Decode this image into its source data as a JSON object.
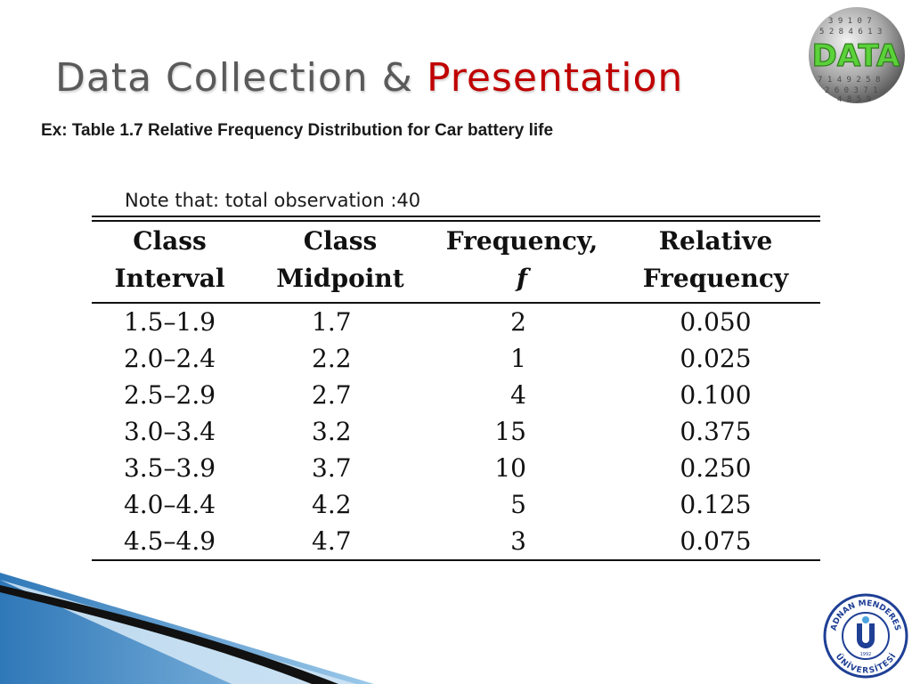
{
  "slide": {
    "title_main": "Data Collection & ",
    "title_accent": "Presentation",
    "subtitle": "Ex: Table 1.7 Relative Frequency Distribution for Car battery life",
    "note": "Note that: total observation :40"
  },
  "table": {
    "headers_line1": [
      "Class",
      "Class",
      "Frequency,",
      "Relative"
    ],
    "headers_line2": [
      "Interval",
      "Midpoint",
      "f",
      "Frequency"
    ],
    "rows": [
      [
        "1.5–1.9",
        "1.7",
        "2",
        "0.050"
      ],
      [
        "2.0–2.4",
        "2.2",
        "1",
        "0.025"
      ],
      [
        "2.5–2.9",
        "2.7",
        "4",
        "0.100"
      ],
      [
        "3.0–3.4",
        "3.2",
        "15",
        "0.375"
      ],
      [
        "3.5–3.9",
        "3.7",
        "10",
        "0.250"
      ],
      [
        "4.0–4.4",
        "4.2",
        "5",
        "0.125"
      ],
      [
        "4.5–4.9",
        "4.7",
        "3",
        "0.075"
      ]
    ]
  },
  "logos": {
    "data_logo_text": "DATA",
    "university_text_top": "ADNAN MENDERES",
    "university_text_bottom": "ÜNİVERSİTESİ",
    "university_year": "1992"
  },
  "colors": {
    "accent": "#c00000",
    "title_gray": "#5a5a5a",
    "logo_green": "#5bd13a",
    "university_blue": "#1f3f95"
  }
}
